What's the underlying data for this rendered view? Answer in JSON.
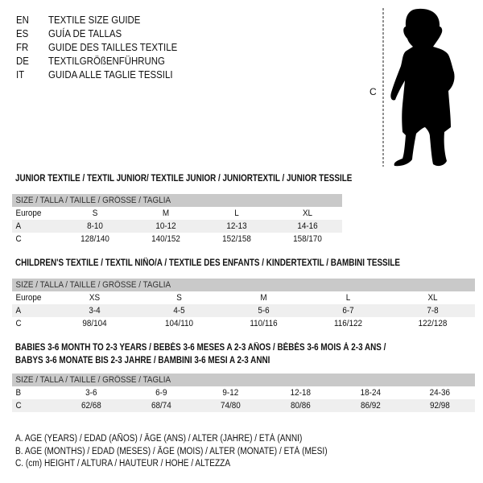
{
  "languages": [
    {
      "code": "EN",
      "title": "TEXTILE SIZE GUIDE"
    },
    {
      "code": "ES",
      "title": "GUÍA DE TALLAS"
    },
    {
      "code": "FR",
      "title": "GUIDE DES TAILLES TEXTILE"
    },
    {
      "code": "DE",
      "title": "TEXTILGRÖßENFÜHRUNG"
    },
    {
      "code": "IT",
      "title": "GUIDA ALLE TAGLIE TESSILI"
    }
  ],
  "figure": {
    "height_label": "C",
    "icon": "child-silhouette"
  },
  "junior": {
    "title": "JUNIOR TEXTILE / TEXTIL JUNIOR/ TEXTILE JUNIOR / JUNIORTEXTIL / JUNIOR TESSILE",
    "header": "SIZE / TALLA / TAILLE / GRÖSSE / TAGLIA",
    "rows": [
      {
        "label": "Europe",
        "values": [
          "S",
          "M",
          "L",
          "XL"
        ]
      },
      {
        "label": "A",
        "values": [
          "8-10",
          "10-12",
          "12-13",
          "14-16"
        ]
      },
      {
        "label": "C",
        "values": [
          "128/140",
          "140/152",
          "152/158",
          "158/170"
        ]
      }
    ]
  },
  "children": {
    "title": "CHILDREN'S TEXTILE / TEXTIL NIÑO/A / TEXTILE DES ENFANTS / KINDERTEXTIL / BAMBINI TESSILE",
    "header": "SIZE / TALLA / TAILLE / GRÖSSE / TAGLIA",
    "rows": [
      {
        "label": "Europe",
        "values": [
          "XS",
          "S",
          "M",
          "L",
          "XL"
        ]
      },
      {
        "label": "A",
        "values": [
          "3-4",
          "4-5",
          "5-6",
          "6-7",
          "7-8"
        ]
      },
      {
        "label": "C",
        "values": [
          "98/104",
          "104/110",
          "110/116",
          "116/122",
          "122/128"
        ]
      }
    ]
  },
  "babies": {
    "title_line1": "BABIES 3-6 MONTH TO 2-3 YEARS / BEBÉS 3-6 MESES A 2-3 AÑOS / BÉBÉS 3-6 MOIS À 2-3 ANS /",
    "title_line2": "BABYS 3-6 MONATE BIS 2-3 JAHRE / BAMBINI 3-6 MESI A 2-3 ANNI",
    "header": "SIZE / TALLA / TAILLE / GRÖSSE / TAGLIA",
    "rows": [
      {
        "label": "B",
        "values": [
          "3-6",
          "6-9",
          "9-12",
          "12-18",
          "18-24",
          "24-36"
        ]
      },
      {
        "label": "C",
        "values": [
          "62/68",
          "68/74",
          "74/80",
          "80/86",
          "86/92",
          "92/98"
        ]
      }
    ]
  },
  "legend": [
    "A. AGE (YEARS) / EDAD (AÑOS) / ÂGE (ANS) / ALTER (JAHRE) / ETÀ (ANNI)",
    "B. AGE (MONTHS) / EDAD (MESES) / ÂGE (MOIS) / ALTER (MONATE) / ETÀ (MESI)",
    "C. (cm) HEIGHT / ALTURA / HAUTEUR / HÖHE / ALTEZZA"
  ],
  "colors": {
    "header_bg": "#c9c9c9",
    "alt_row_bg": "#efefef"
  }
}
